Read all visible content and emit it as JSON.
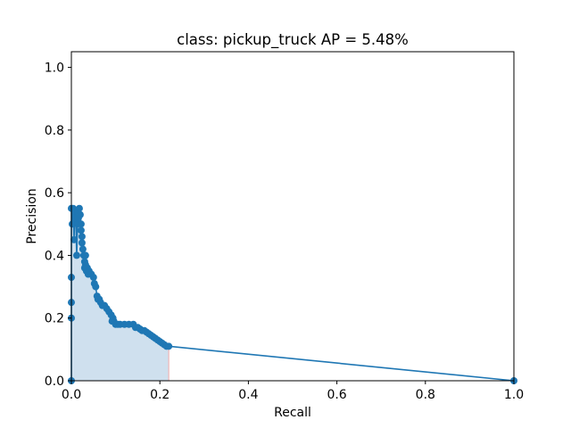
{
  "chart_data": {
    "type": "line",
    "title": "class: pickup_truck AP = 5.48%",
    "xlabel": "Recall",
    "ylabel": "Precision",
    "xlim": [
      0.0,
      1.0
    ],
    "ylim": [
      0.0,
      1.05
    ],
    "xticks": [
      "0.0",
      "0.2",
      "0.4",
      "0.6",
      "0.8",
      "1.0"
    ],
    "xtick_values": [
      0.0,
      0.2,
      0.4,
      0.6,
      0.8,
      1.0
    ],
    "yticks": [
      "0.0",
      "0.2",
      "0.4",
      "0.6",
      "0.8",
      "1.0"
    ],
    "ytick_values": [
      0.0,
      0.2,
      0.4,
      0.6,
      0.8,
      1.0
    ],
    "grid": false,
    "colors": {
      "line": "#1f77b4",
      "fill": "#cfe0ee",
      "edge": "#f0b6b6",
      "axes": "#000000"
    },
    "series": [
      {
        "name": "precision-recall",
        "x": [
          0.0,
          0.0,
          0.0,
          0.0,
          0.0,
          0.002,
          0.004,
          0.006,
          0.008,
          0.01,
          0.012,
          0.014,
          0.016,
          0.018,
          0.02,
          0.022,
          0.022,
          0.024,
          0.024,
          0.026,
          0.028,
          0.03,
          0.03,
          0.032,
          0.032,
          0.034,
          0.036,
          0.038,
          0.04,
          0.045,
          0.05,
          0.052,
          0.055,
          0.058,
          0.06,
          0.063,
          0.066,
          0.07,
          0.075,
          0.08,
          0.085,
          0.09,
          0.092,
          0.094,
          0.096,
          0.1,
          0.105,
          0.11,
          0.12,
          0.13,
          0.14,
          0.145,
          0.15,
          0.155,
          0.16,
          0.165,
          0.17,
          0.175,
          0.18,
          0.185,
          0.19,
          0.195,
          0.2,
          0.205,
          0.21,
          0.215,
          0.22,
          1.0
        ],
        "y": [
          0.0,
          0.2,
          0.25,
          0.33,
          0.55,
          0.5,
          0.55,
          0.45,
          0.54,
          0.52,
          0.4,
          0.5,
          0.52,
          0.55,
          0.53,
          0.5,
          0.48,
          0.46,
          0.44,
          0.42,
          0.4,
          0.38,
          0.36,
          0.4,
          0.37,
          0.35,
          0.36,
          0.34,
          0.35,
          0.34,
          0.33,
          0.31,
          0.3,
          0.27,
          0.26,
          0.26,
          0.25,
          0.24,
          0.24,
          0.23,
          0.22,
          0.21,
          0.19,
          0.2,
          0.19,
          0.18,
          0.18,
          0.18,
          0.18,
          0.18,
          0.18,
          0.17,
          0.17,
          0.165,
          0.16,
          0.16,
          0.155,
          0.15,
          0.145,
          0.14,
          0.135,
          0.13,
          0.125,
          0.12,
          0.115,
          0.11,
          0.11,
          0.0
        ]
      }
    ]
  }
}
